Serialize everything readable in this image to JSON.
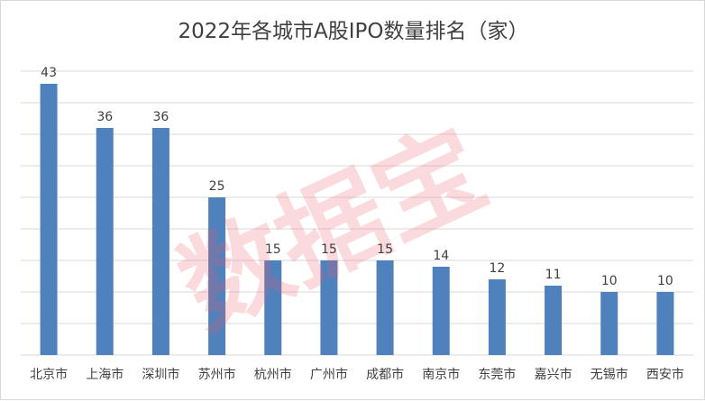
{
  "chart_data": {
    "type": "bar",
    "title": "2022年各城市A股IPO数量排名（家）",
    "categories": [
      "北京市",
      "上海市",
      "深圳市",
      "苏州市",
      "杭州市",
      "广州市",
      "成都市",
      "南京市",
      "东莞市",
      "嘉兴市",
      "无锡市",
      "西安市"
    ],
    "values": [
      43,
      36,
      36,
      25,
      15,
      15,
      15,
      14,
      12,
      11,
      10,
      10
    ],
    "xlabel": "",
    "ylabel": "",
    "ylim": [
      0,
      45
    ],
    "grid": true,
    "data_labels": true,
    "bar_color": "#4f81bd"
  },
  "watermark": {
    "text": "数据宝",
    "color": "#ef5d68"
  }
}
